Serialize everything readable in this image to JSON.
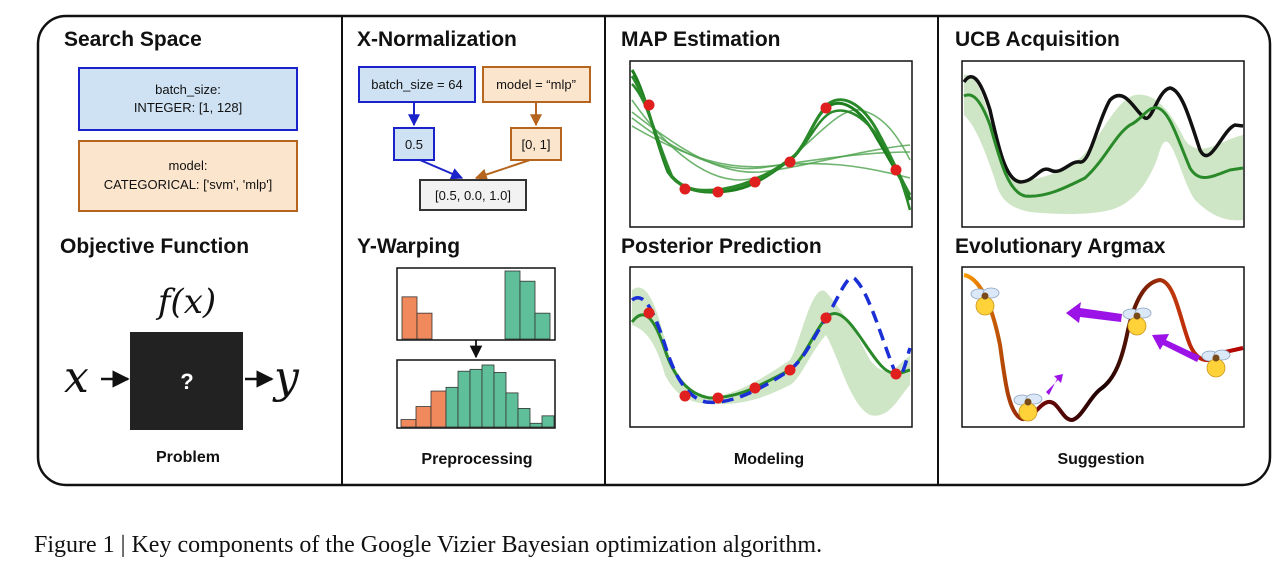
{
  "figure": {
    "caption": "Figure 1 | Key components of the Google Vizier Bayesian optimization algorithm."
  },
  "colors": {
    "green": "#2a8a2a",
    "light_green": "#cfe6c6",
    "teal_bar": "#5fbf9b",
    "orange_bar": "#f08a5d",
    "blue_dash": "#1a2fd6",
    "red_point": "#e01f1f",
    "search_blue_fill": "#cfe2f3",
    "search_blue_border": "#1a22c9",
    "search_orange_fill": "#fce5cd",
    "search_orange_border": "#b5651d",
    "purple_arrow": "#9b13e6"
  },
  "panels": {
    "problem": {
      "footer": "Problem",
      "search_space": {
        "title": "Search Space",
        "param1_line1": "batch_size:",
        "param1_line2": "INTEGER: [1, 128]",
        "param2_line1": "model:",
        "param2_line2": "CATEGORICAL: ['svm', 'mlp']"
      },
      "objective": {
        "title": "Objective Function",
        "func": "f(x)",
        "input": "x",
        "output": "y",
        "box_label": "?"
      }
    },
    "preprocessing": {
      "footer": "Preprocessing",
      "x_norm": {
        "title": "X-Normalization",
        "input1": "batch_size = 64",
        "input2": "model = “mlp”",
        "norm1": "0.5",
        "norm2": "[0, 1]",
        "result": "[0.5, 0.0, 1.0]"
      },
      "y_warp": {
        "title": "Y-Warping",
        "before_orange": [
          0.62,
          0.38
        ],
        "before_teal": [
          1.0,
          0.85,
          0.38
        ],
        "after_orange": [
          0.12,
          0.33,
          0.58
        ],
        "after_teal": [
          0.64,
          0.9,
          0.93,
          1.0,
          0.88,
          0.55,
          0.3,
          0.06,
          0.18
        ]
      }
    },
    "modeling": {
      "footer": "Modeling",
      "map_title": "MAP Estimation",
      "posterior_title": "Posterior Prediction"
    },
    "suggestion": {
      "footer": "Suggestion",
      "ucb_title": "UCB Acquisition",
      "evo_title": "Evolutionary Argmax"
    }
  }
}
